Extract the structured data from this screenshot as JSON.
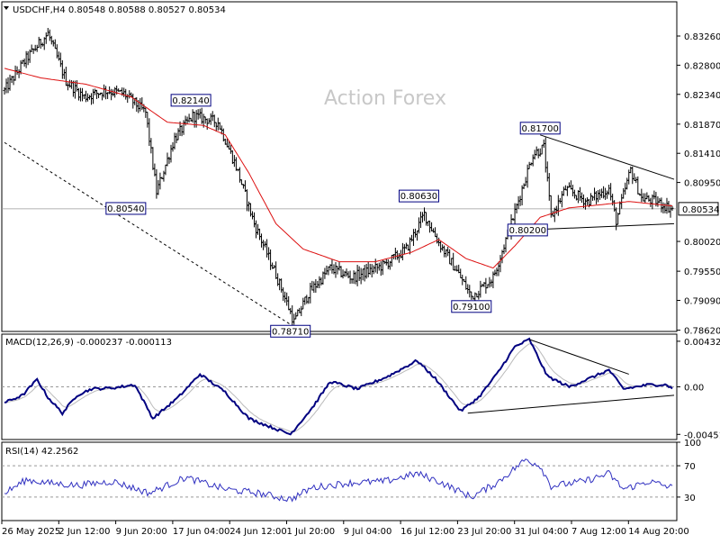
{
  "header": {
    "main": "USDCHF,H4  0.80548 0.80588 0.80527 0.80534",
    "macd": "MACD(12,26,9) -0.000237 -0.000113",
    "rsi": "RSI(14) 42.2562"
  },
  "watermark": "Action Forex",
  "colors": {
    "candle": "#000000",
    "ma": "#dd1111",
    "macd": "#000080",
    "signal": "#bbbbbb",
    "trend": "#000000",
    "label_border": "#000080",
    "rsi": "#3030c0",
    "grid": "#999999"
  },
  "chart_data": [
    {
      "type": "line",
      "panel": "price",
      "instrument": "USDCHF,H4",
      "ylim": [
        0.786,
        0.838
      ],
      "y_ticks": [
        "0.83260",
        "0.82800",
        "0.82340",
        "0.81870",
        "0.81410",
        "0.80950",
        "0.80020",
        "0.79550",
        "0.79090",
        "0.78620"
      ],
      "current_price": "0.80534",
      "x_ticks": [
        "26 May 2025",
        "2 Jun 12:00",
        "9 Jun 20:00",
        "17 Jun 04:00",
        "24 Jun 12:00",
        "1 Jul 20:00",
        "9 Jul 04:00",
        "16 Jul 12:00",
        "23 Jul 20:00",
        "31 Jul 04:00",
        "7 Aug 12:00",
        "14 Aug 20:00"
      ],
      "bar_count": 370,
      "price_anchors": [
        [
          0,
          0.824
        ],
        [
          12,
          0.829
        ],
        [
          24,
          0.833
        ],
        [
          34,
          0.8255
        ],
        [
          44,
          0.823
        ],
        [
          56,
          0.824
        ],
        [
          66,
          0.8235
        ],
        [
          78,
          0.8205
        ],
        [
          84,
          0.808
        ],
        [
          94,
          0.8165
        ],
        [
          104,
          0.82
        ],
        [
          118,
          0.819
        ],
        [
          128,
          0.812
        ],
        [
          138,
          0.803
        ],
        [
          150,
          0.795
        ],
        [
          160,
          0.7875
        ],
        [
          168,
          0.792
        ],
        [
          180,
          0.796
        ],
        [
          192,
          0.7945
        ],
        [
          210,
          0.7965
        ],
        [
          222,
          0.799
        ],
        [
          232,
          0.8045
        ],
        [
          240,
          0.8
        ],
        [
          250,
          0.7955
        ],
        [
          258,
          0.7915
        ],
        [
          270,
          0.7945
        ],
        [
          280,
          0.803
        ],
        [
          292,
          0.814
        ],
        [
          298,
          0.815
        ],
        [
          302,
          0.804
        ],
        [
          310,
          0.8085
        ],
        [
          322,
          0.8065
        ],
        [
          334,
          0.8085
        ],
        [
          338,
          0.8035
        ],
        [
          346,
          0.8115
        ],
        [
          352,
          0.807
        ],
        [
          360,
          0.8065
        ],
        [
          369,
          0.8053
        ]
      ],
      "ma_anchors": [
        [
          0,
          0.8275
        ],
        [
          20,
          0.826
        ],
        [
          45,
          0.825
        ],
        [
          70,
          0.823
        ],
        [
          90,
          0.819
        ],
        [
          110,
          0.8185
        ],
        [
          122,
          0.817
        ],
        [
          135,
          0.811
        ],
        [
          150,
          0.803
        ],
        [
          165,
          0.799
        ],
        [
          185,
          0.797
        ],
        [
          205,
          0.797
        ],
        [
          225,
          0.7985
        ],
        [
          240,
          0.8005
        ],
        [
          255,
          0.7975
        ],
        [
          270,
          0.796
        ],
        [
          282,
          0.7995
        ],
        [
          296,
          0.804
        ],
        [
          312,
          0.8055
        ],
        [
          330,
          0.806
        ],
        [
          345,
          0.8065
        ],
        [
          369,
          0.8058
        ]
      ],
      "price_labels": [
        {
          "text": "0.82140",
          "bar": 103,
          "price": 0.8214,
          "side": "above"
        },
        {
          "text": "0.80540",
          "bar": 79,
          "price": 0.8054,
          "side": "left"
        },
        {
          "text": "0.78710",
          "bar": 158,
          "price": 0.7871,
          "side": "below"
        },
        {
          "text": "0.80630",
          "bar": 229,
          "price": 0.8063,
          "side": "above"
        },
        {
          "text": "0.79100",
          "bar": 258,
          "price": 0.791,
          "side": "below"
        },
        {
          "text": "0.81700",
          "bar": 296,
          "price": 0.817,
          "side": "above"
        },
        {
          "text": "0.80200",
          "bar": 301,
          "price": 0.802,
          "side": "left"
        }
      ],
      "trendlines": [
        {
          "from": [
            0,
            0.8158
          ],
          "to": [
            158,
            0.7871
          ],
          "style": "dashed"
        },
        {
          "from": [
            296,
            0.817
          ],
          "to": [
            370,
            0.81
          ],
          "style": "solid"
        },
        {
          "from": [
            296,
            0.8021
          ],
          "to": [
            370,
            0.803
          ],
          "style": "solid"
        }
      ]
    },
    {
      "type": "line",
      "panel": "macd",
      "title": "MACD(12,26,9)",
      "ylim": [
        -0.005,
        0.005
      ],
      "y_ticks": [
        "0.004325",
        "0.00",
        "-0.004511"
      ],
      "macd_anchors": [
        [
          0,
          -0.0015
        ],
        [
          10,
          -0.0008
        ],
        [
          18,
          0.0007
        ],
        [
          24,
          -0.001
        ],
        [
          32,
          -0.0025
        ],
        [
          40,
          -0.0008
        ],
        [
          48,
          -0.0002
        ],
        [
          60,
          -0.0001
        ],
        [
          72,
          0.0002
        ],
        [
          82,
          -0.003
        ],
        [
          96,
          -0.001
        ],
        [
          108,
          0.0012
        ],
        [
          122,
          -0.0005
        ],
        [
          135,
          -0.003
        ],
        [
          150,
          -0.004
        ],
        [
          158,
          -0.0045
        ],
        [
          170,
          -0.002
        ],
        [
          180,
          0.0005
        ],
        [
          195,
          -0.0002
        ],
        [
          212,
          0.001
        ],
        [
          228,
          0.0025
        ],
        [
          238,
          0.0008
        ],
        [
          252,
          -0.0023
        ],
        [
          262,
          -0.001
        ],
        [
          272,
          0.0012
        ],
        [
          282,
          0.0038
        ],
        [
          290,
          0.0045
        ],
        [
          300,
          0.001
        ],
        [
          312,
          0.0
        ],
        [
          326,
          0.001
        ],
        [
          334,
          0.0016
        ],
        [
          342,
          -0.0002
        ],
        [
          356,
          0.0002
        ],
        [
          366,
          0.0002
        ],
        [
          369,
          -0.0002
        ]
      ],
      "trendlines": [
        {
          "from": [
            290,
            0.0045
          ],
          "to": [
            345,
            0.0012
          ]
        },
        {
          "from": [
            256,
            -0.0025
          ],
          "to": [
            370,
            -0.0008
          ]
        }
      ]
    },
    {
      "type": "line",
      "panel": "rsi",
      "title": "RSI(14)",
      "ylim": [
        0,
        100
      ],
      "y_ticks": [
        "100",
        "70",
        "30",
        "0"
      ],
      "levels": [
        70,
        30
      ],
      "rsi_anchors": [
        [
          0,
          35
        ],
        [
          12,
          52
        ],
        [
          24,
          48
        ],
        [
          40,
          45
        ],
        [
          60,
          50
        ],
        [
          80,
          35
        ],
        [
          100,
          55
        ],
        [
          122,
          40
        ],
        [
          140,
          35
        ],
        [
          158,
          27
        ],
        [
          170,
          42
        ],
        [
          190,
          48
        ],
        [
          210,
          50
        ],
        [
          228,
          60
        ],
        [
          240,
          50
        ],
        [
          258,
          30
        ],
        [
          272,
          48
        ],
        [
          288,
          78
        ],
        [
          296,
          70
        ],
        [
          302,
          44
        ],
        [
          320,
          50
        ],
        [
          334,
          60
        ],
        [
          342,
          40
        ],
        [
          356,
          50
        ],
        [
          369,
          42
        ]
      ]
    }
  ]
}
